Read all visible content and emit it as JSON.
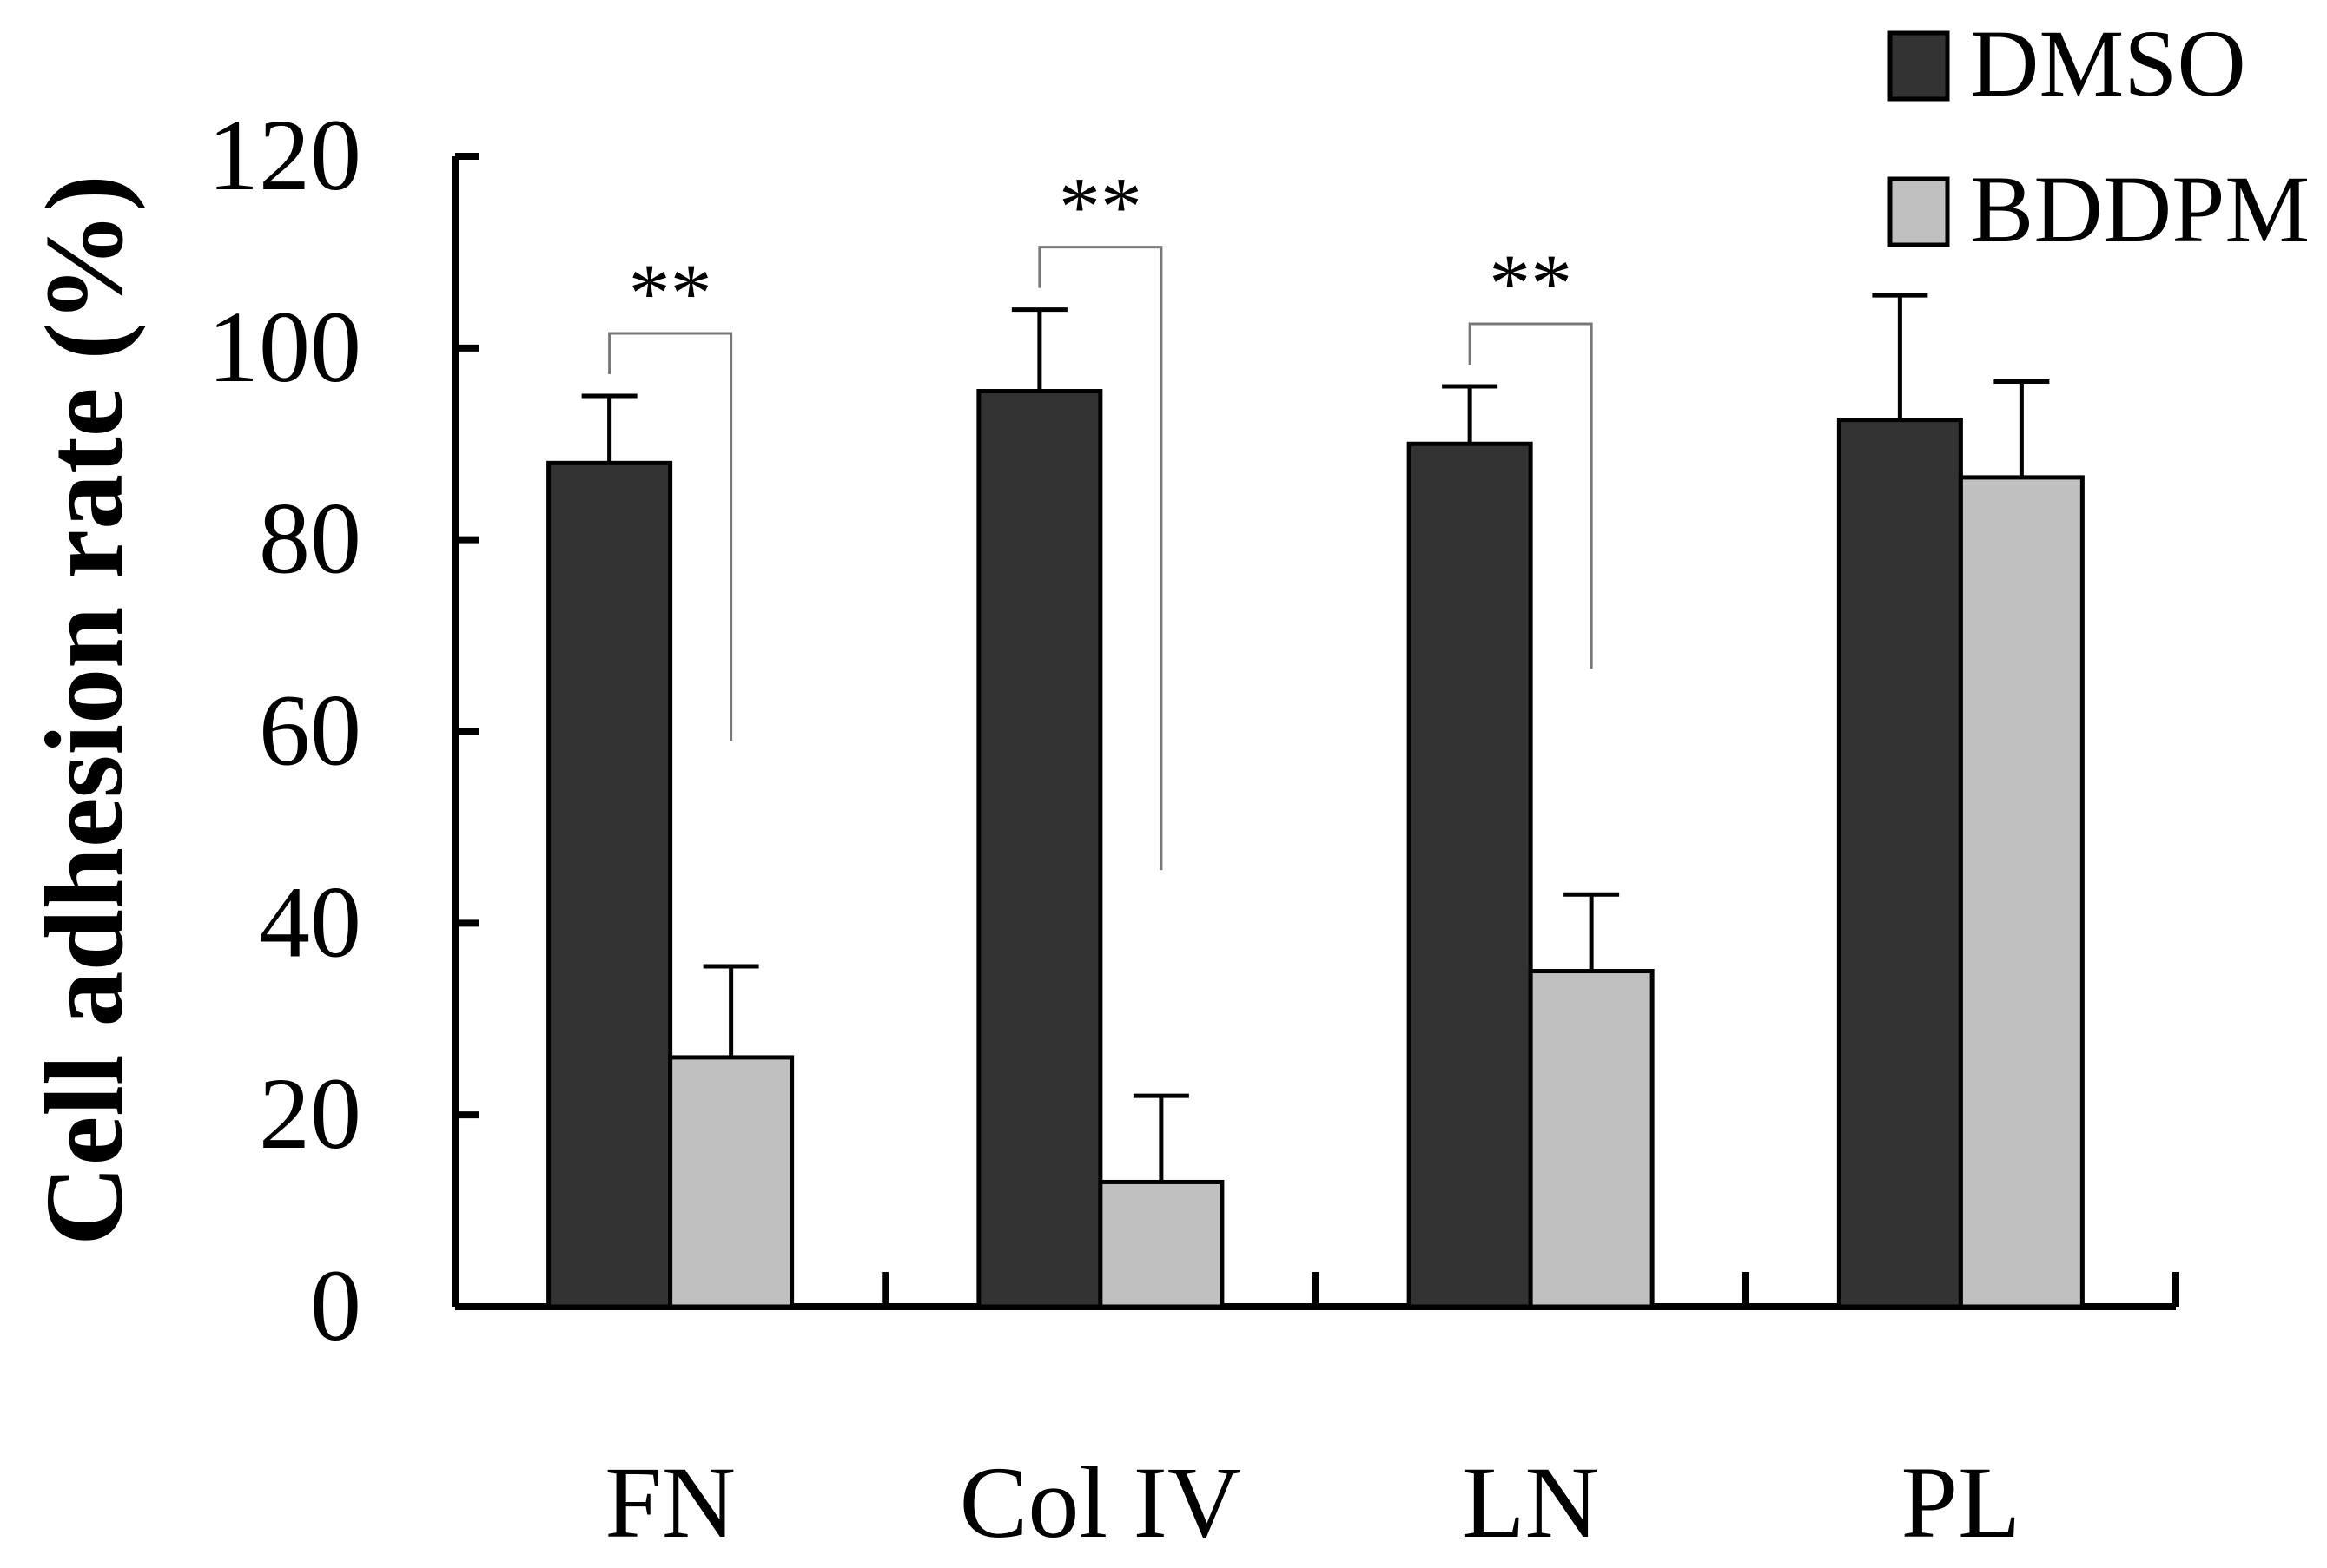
{
  "chart_data": {
    "type": "bar",
    "title": "",
    "xlabel": "",
    "ylabel": "Cell adhesion rate (%)",
    "ylim": [
      0,
      120
    ],
    "yticks": [
      0,
      20,
      40,
      60,
      80,
      100,
      120
    ],
    "categories": [
      "FN",
      "Col IV",
      "LN",
      "PL"
    ],
    "series": [
      {
        "name": "DMSO",
        "color": "#333333",
        "values": [
          88,
          95.5,
          90,
          92.5
        ],
        "errors": [
          7,
          8.5,
          6,
          13
        ]
      },
      {
        "name": "BDDPM",
        "color": "#c0c0c0",
        "values": [
          26,
          13,
          35,
          86.5
        ],
        "errors": [
          9.5,
          9,
          8,
          10
        ]
      }
    ],
    "significance": [
      {
        "category": "FN",
        "label": "**"
      },
      {
        "category": "Col IV",
        "label": "**"
      },
      {
        "category": "LN",
        "label": "**"
      }
    ],
    "legend": {
      "position": "top-right"
    },
    "grid": false
  }
}
